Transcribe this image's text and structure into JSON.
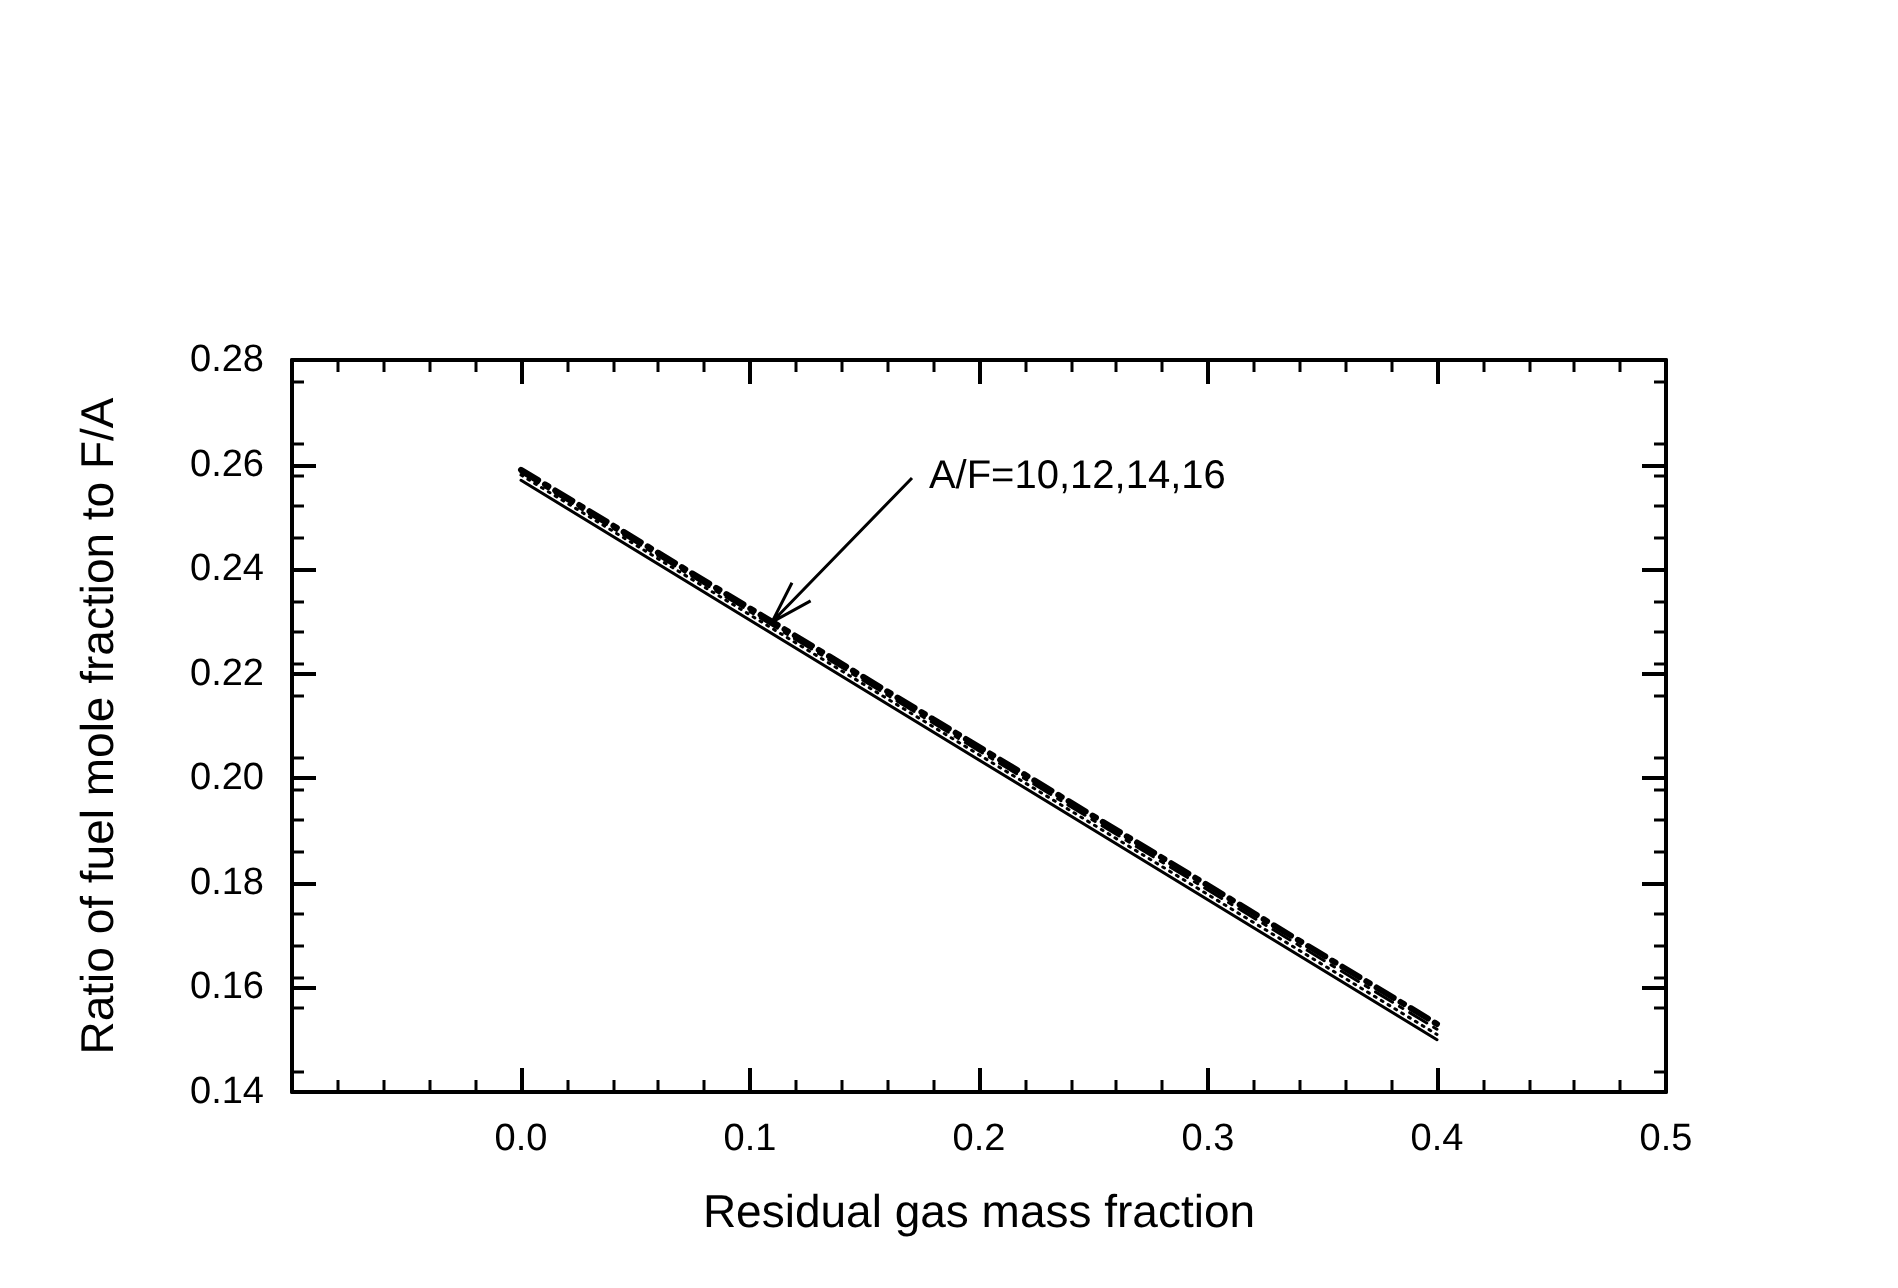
{
  "chart_data": {
    "type": "line",
    "xlabel": "Residual gas mass fraction",
    "ylabel": "Ratio of fuel mole fraction to F/A",
    "x": [
      0,
      0.4
    ],
    "series": [
      {
        "color": "#000000",
        "values": [
          0.257,
          0.15
        ],
        "line_style": "solid"
      },
      {
        "color": "#000000",
        "values": [
          0.258,
          0.151
        ],
        "line_style": "dotted"
      },
      {
        "color": "#000000",
        "values": [
          0.2585,
          0.152
        ],
        "line_style": "dashed"
      },
      {
        "color": "#000000",
        "values": [
          0.259,
          0.153
        ],
        "line_style": "dashed"
      }
    ],
    "xlim": [
      -0.1,
      0.5
    ],
    "xticks": [
      {
        "value": -0.1,
        "label": null
      },
      {
        "value": 0,
        "label": "0.0"
      },
      0.1,
      0.2,
      0.3,
      0.4,
      0.5
    ],
    "ylim": [
      0.14,
      0.28
    ],
    "yticks": [
      0.14,
      0.16,
      0.18,
      {
        "value": 0.2,
        "label": "0.20"
      },
      0.22,
      0.24,
      0.26,
      0.28
    ],
    "annotations": [
      {
        "text": "A/F=10,12,14,16",
        "x": 0.11,
        "y": 0.23
      }
    ],
    "grid": false,
    "marker": "none"
  }
}
